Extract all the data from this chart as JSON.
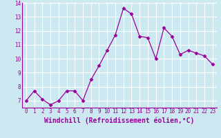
{
  "x": [
    0,
    1,
    2,
    3,
    4,
    5,
    6,
    7,
    8,
    9,
    10,
    11,
    12,
    13,
    14,
    15,
    16,
    17,
    18,
    19,
    20,
    21,
    22,
    23
  ],
  "y": [
    7.0,
    7.7,
    7.1,
    6.7,
    7.0,
    7.7,
    7.7,
    7.0,
    8.5,
    9.5,
    10.6,
    11.7,
    13.6,
    13.2,
    11.6,
    11.5,
    10.0,
    12.2,
    11.6,
    10.3,
    10.6,
    10.4,
    10.2,
    9.6
  ],
  "line_color": "#990099",
  "marker": "D",
  "markersize": 2.5,
  "linewidth": 0.9,
  "xlabel": "Windchill (Refroidissement éolien,°C)",
  "xlabel_fontsize": 7,
  "bg_color": "#cce8f0",
  "grid_color": "#b0d8e8",
  "tick_color": "#990099",
  "label_color": "#990099",
  "ylim": [
    6.5,
    14.0
  ],
  "yticks": [
    7,
    8,
    9,
    10,
    11,
    12,
    13,
    14
  ],
  "xticks": [
    0,
    1,
    2,
    3,
    4,
    5,
    6,
    7,
    8,
    9,
    10,
    11,
    12,
    13,
    14,
    15,
    16,
    17,
    18,
    19,
    20,
    21,
    22,
    23
  ],
  "tick_fontsize": 5.5
}
